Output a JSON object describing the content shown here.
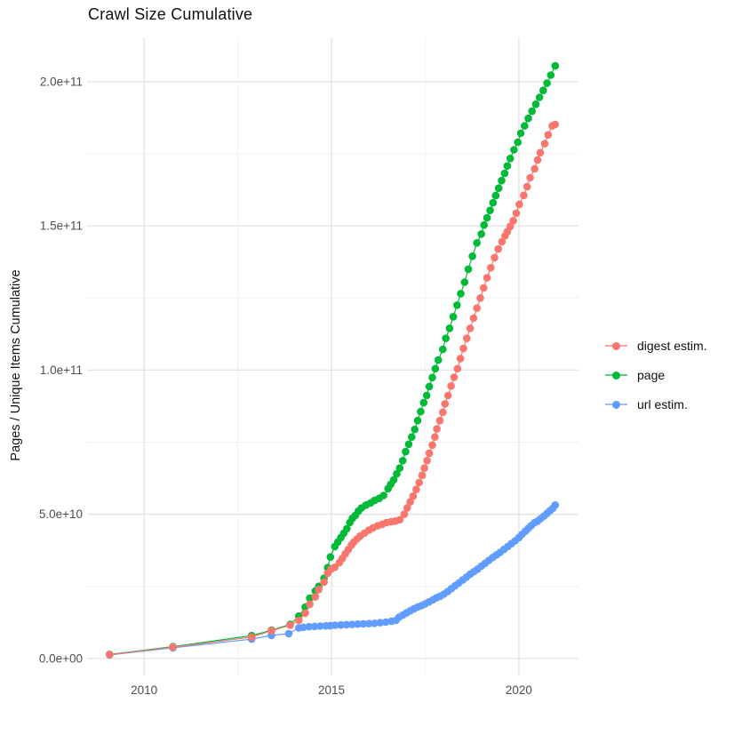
{
  "page": {
    "title": "Crawl Size Cumulative",
    "y_axis_title": "Pages / Unique Items Cumulative"
  },
  "legend": {
    "items": [
      {
        "label": "digest estim.",
        "color": "#F8766D"
      },
      {
        "label": "page",
        "color": "#00BA38"
      },
      {
        "label": "url estim.",
        "color": "#619CFF"
      }
    ]
  },
  "colors": {
    "background": "#ffffff",
    "grid_major": "#E4E4E4",
    "grid_minor": "#F0F0F0",
    "tick_text": "#4D4D4D",
    "title_text": "#111111"
  },
  "chart_data": {
    "type": "scatter",
    "title": "Crawl Size Cumulative",
    "xlabel": "",
    "ylabel": "Pages / Unique Items Cumulative",
    "value_unit": "pages, values stored in billions (1e9)",
    "grid": true,
    "legend_position": "right",
    "x_domain": [
      2008.48,
      2021.59
    ],
    "y_domain": [
      -5.9,
      215.4
    ],
    "x_ticks": [
      {
        "label": "2010",
        "value": 2010
      },
      {
        "label": "2015",
        "value": 2015
      },
      {
        "label": "2020",
        "value": 2020
      }
    ],
    "y_ticks": [
      {
        "label": "0.0e+00",
        "value": 0
      },
      {
        "label": "5.0e+10",
        "value": 50
      },
      {
        "label": "1.0e+11",
        "value": 100
      },
      {
        "label": "1.5e+11",
        "value": 150
      },
      {
        "label": "2.0e+11",
        "value": 200
      }
    ],
    "x_minor_ticks": [
      2012.5,
      2017.5
    ],
    "y_minor_ticks": [
      25,
      75,
      125,
      175
    ],
    "series": [
      {
        "name": "digest estim.",
        "color": "#F8766D",
        "points": [
          [
            2009.08,
            1.3
          ],
          [
            2010.77,
            3.9
          ],
          [
            2012.87,
            7.4
          ],
          [
            2013.4,
            9.6
          ],
          [
            2013.9,
            11.5
          ],
          [
            2014.13,
            13.2
          ],
          [
            2014.3,
            15.7
          ],
          [
            2014.42,
            18.8
          ],
          [
            2014.57,
            21.4
          ],
          [
            2014.66,
            23.9
          ],
          [
            2014.8,
            26.5
          ],
          [
            2014.9,
            29.5
          ],
          [
            2014.99,
            31.0
          ],
          [
            2015.09,
            31.6
          ],
          [
            2015.21,
            33.2
          ],
          [
            2015.29,
            34.7
          ],
          [
            2015.37,
            36.3
          ],
          [
            2015.45,
            37.8
          ],
          [
            2015.53,
            39.3
          ],
          [
            2015.6,
            40.4
          ],
          [
            2015.68,
            41.4
          ],
          [
            2015.76,
            42.4
          ],
          [
            2015.88,
            43.4
          ],
          [
            2016.0,
            44.5
          ],
          [
            2016.11,
            45.3
          ],
          [
            2016.23,
            46.0
          ],
          [
            2016.35,
            46.5
          ],
          [
            2016.47,
            47.1
          ],
          [
            2016.59,
            47.4
          ],
          [
            2016.7,
            47.6
          ],
          [
            2016.82,
            48.1
          ],
          [
            2016.94,
            50.0
          ],
          [
            2017.02,
            52.2
          ],
          [
            2017.1,
            54.3
          ],
          [
            2017.18,
            56.3
          ],
          [
            2017.26,
            58.6
          ],
          [
            2017.34,
            61.0
          ],
          [
            2017.42,
            63.5
          ],
          [
            2017.48,
            66.0
          ],
          [
            2017.55,
            68.6
          ],
          [
            2017.61,
            71.2
          ],
          [
            2017.69,
            74.0
          ],
          [
            2017.76,
            76.8
          ],
          [
            2017.81,
            79.6
          ],
          [
            2017.89,
            82.5
          ],
          [
            2017.97,
            85.4
          ],
          [
            2018.03,
            88.3
          ],
          [
            2018.11,
            91.2
          ],
          [
            2018.19,
            94.5
          ],
          [
            2018.27,
            97.5
          ],
          [
            2018.36,
            100.5
          ],
          [
            2018.44,
            104.0
          ],
          [
            2018.52,
            107.5
          ],
          [
            2018.61,
            111.0
          ],
          [
            2018.7,
            114.5
          ],
          [
            2018.79,
            118.0
          ],
          [
            2018.88,
            121.5
          ],
          [
            2018.97,
            125.0
          ],
          [
            2019.06,
            128.5
          ],
          [
            2019.15,
            132.0
          ],
          [
            2019.25,
            135.5
          ],
          [
            2019.35,
            139.0
          ],
          [
            2019.45,
            142.0
          ],
          [
            2019.55,
            144.5
          ],
          [
            2019.63,
            146.5
          ],
          [
            2019.69,
            148.0
          ],
          [
            2019.77,
            149.8
          ],
          [
            2019.85,
            151.8
          ],
          [
            2019.93,
            154.4
          ],
          [
            2020.01,
            157.5
          ],
          [
            2020.13,
            160.6
          ],
          [
            2020.22,
            163.6
          ],
          [
            2020.3,
            166.7
          ],
          [
            2020.42,
            169.8
          ],
          [
            2020.5,
            172.9
          ],
          [
            2020.57,
            175.4
          ],
          [
            2020.69,
            178.5
          ],
          [
            2020.78,
            181.6
          ],
          [
            2020.89,
            184.7
          ],
          [
            2020.97,
            185.2
          ]
        ]
      },
      {
        "name": "page",
        "color": "#00BA38",
        "points": [
          [
            2009.08,
            1.4
          ],
          [
            2010.77,
            4.1
          ],
          [
            2012.87,
            7.9
          ],
          [
            2013.4,
            9.8
          ],
          [
            2013.9,
            11.8
          ],
          [
            2014.13,
            14.7
          ],
          [
            2014.3,
            17.8
          ],
          [
            2014.42,
            20.9
          ],
          [
            2014.57,
            23.4
          ],
          [
            2014.66,
            25.0
          ],
          [
            2014.8,
            27.8
          ],
          [
            2014.9,
            31.5
          ],
          [
            2014.97,
            35.2
          ],
          [
            2015.09,
            38.8
          ],
          [
            2015.17,
            40.4
          ],
          [
            2015.25,
            41.9
          ],
          [
            2015.33,
            43.4
          ],
          [
            2015.41,
            45.0
          ],
          [
            2015.49,
            47.1
          ],
          [
            2015.56,
            48.6
          ],
          [
            2015.64,
            49.6
          ],
          [
            2015.72,
            51.1
          ],
          [
            2015.8,
            52.2
          ],
          [
            2015.92,
            53.2
          ],
          [
            2016.04,
            53.9
          ],
          [
            2016.15,
            54.8
          ],
          [
            2016.27,
            55.5
          ],
          [
            2016.39,
            56.5
          ],
          [
            2016.51,
            58.9
          ],
          [
            2016.58,
            60.4
          ],
          [
            2016.66,
            61.9
          ],
          [
            2016.74,
            64.0
          ],
          [
            2016.82,
            66.0
          ],
          [
            2016.9,
            68.6
          ],
          [
            2016.98,
            71.7
          ],
          [
            2017.06,
            74.3
          ],
          [
            2017.14,
            76.8
          ],
          [
            2017.22,
            79.4
          ],
          [
            2017.3,
            82.5
          ],
          [
            2017.38,
            85.6
          ],
          [
            2017.46,
            88.7
          ],
          [
            2017.54,
            91.2
          ],
          [
            2017.61,
            94.3
          ],
          [
            2017.69,
            97.4
          ],
          [
            2017.77,
            100.5
          ],
          [
            2017.85,
            103.5
          ],
          [
            2017.97,
            107.2
          ],
          [
            2018.05,
            111.0
          ],
          [
            2018.15,
            114.5
          ],
          [
            2018.25,
            118.5
          ],
          [
            2018.35,
            122.5
          ],
          [
            2018.45,
            126.5
          ],
          [
            2018.55,
            130.5
          ],
          [
            2018.65,
            135.0
          ],
          [
            2018.76,
            139.5
          ],
          [
            2018.88,
            144.1
          ],
          [
            2019.0,
            147.2
          ],
          [
            2019.07,
            150.3
          ],
          [
            2019.15,
            152.8
          ],
          [
            2019.23,
            155.4
          ],
          [
            2019.31,
            158.0
          ],
          [
            2019.38,
            160.5
          ],
          [
            2019.46,
            163.1
          ],
          [
            2019.54,
            165.7
          ],
          [
            2019.62,
            168.2
          ],
          [
            2019.69,
            170.8
          ],
          [
            2019.77,
            173.4
          ],
          [
            2019.87,
            176.4
          ],
          [
            2019.97,
            179.0
          ],
          [
            2020.05,
            182.1
          ],
          [
            2020.15,
            184.7
          ],
          [
            2020.25,
            187.3
          ],
          [
            2020.35,
            189.8
          ],
          [
            2020.45,
            192.2
          ],
          [
            2020.55,
            194.6
          ],
          [
            2020.65,
            197.0
          ],
          [
            2020.75,
            199.5
          ],
          [
            2020.85,
            202.3
          ],
          [
            2020.97,
            205.5
          ]
        ]
      },
      {
        "name": "url estim.",
        "color": "#619CFF",
        "points": [
          [
            2009.08,
            1.2
          ],
          [
            2010.77,
            3.7
          ],
          [
            2012.87,
            6.7
          ],
          [
            2013.4,
            8.0
          ],
          [
            2013.86,
            8.6
          ],
          [
            2014.13,
            10.6
          ],
          [
            2014.25,
            10.8
          ],
          [
            2014.4,
            11.0
          ],
          [
            2014.55,
            11.1
          ],
          [
            2014.7,
            11.2
          ],
          [
            2014.85,
            11.3
          ],
          [
            2014.97,
            11.4
          ],
          [
            2015.1,
            11.5
          ],
          [
            2015.25,
            11.6
          ],
          [
            2015.4,
            11.7
          ],
          [
            2015.55,
            11.8
          ],
          [
            2015.7,
            11.9
          ],
          [
            2015.85,
            12.0
          ],
          [
            2016.0,
            12.1
          ],
          [
            2016.15,
            12.2
          ],
          [
            2016.3,
            12.4
          ],
          [
            2016.45,
            12.6
          ],
          [
            2016.6,
            12.9
          ],
          [
            2016.72,
            13.2
          ],
          [
            2016.8,
            14.3
          ],
          [
            2016.9,
            15.0
          ],
          [
            2017.0,
            15.8
          ],
          [
            2017.1,
            16.5
          ],
          [
            2017.2,
            17.2
          ],
          [
            2017.3,
            17.8
          ],
          [
            2017.4,
            18.3
          ],
          [
            2017.5,
            18.9
          ],
          [
            2017.6,
            19.6
          ],
          [
            2017.7,
            20.3
          ],
          [
            2017.8,
            21.0
          ],
          [
            2017.9,
            21.6
          ],
          [
            2018.0,
            22.3
          ],
          [
            2018.1,
            23.2
          ],
          [
            2018.2,
            24.2
          ],
          [
            2018.3,
            25.2
          ],
          [
            2018.4,
            26.2
          ],
          [
            2018.5,
            27.2
          ],
          [
            2018.6,
            28.2
          ],
          [
            2018.7,
            29.2
          ],
          [
            2018.8,
            30.1
          ],
          [
            2018.9,
            31.0
          ],
          [
            2019.0,
            32.0
          ],
          [
            2019.1,
            33.0
          ],
          [
            2019.2,
            34.0
          ],
          [
            2019.3,
            35.0
          ],
          [
            2019.4,
            35.9
          ],
          [
            2019.5,
            36.8
          ],
          [
            2019.6,
            37.8
          ],
          [
            2019.7,
            38.8
          ],
          [
            2019.8,
            39.8
          ],
          [
            2019.9,
            40.8
          ],
          [
            2020.0,
            41.9
          ],
          [
            2020.08,
            43.0
          ],
          [
            2020.17,
            44.1
          ],
          [
            2020.25,
            45.1
          ],
          [
            2020.33,
            46.1
          ],
          [
            2020.42,
            47.1
          ],
          [
            2020.5,
            47.6
          ],
          [
            2020.58,
            48.5
          ],
          [
            2020.67,
            49.4
          ],
          [
            2020.75,
            50.3
          ],
          [
            2020.83,
            51.2
          ],
          [
            2020.9,
            52.0
          ],
          [
            2020.97,
            53.2
          ]
        ]
      }
    ]
  }
}
